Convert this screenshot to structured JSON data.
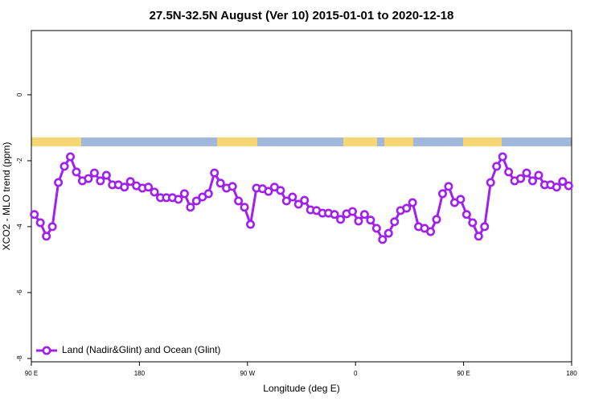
{
  "chart_data": {
    "type": "line",
    "title": "27.5N-32.5N August (Ver 10)   2015-01-01 to 2020-12-18",
    "x_label": "Longitude (deg E)",
    "y_label": "XCO2 - MLO trend (ppm)",
    "xlim": [
      90,
      540
    ],
    "ylim": [
      -8.1,
      1.95
    ],
    "xticks": [
      {
        "value": 90,
        "label": "90 E"
      },
      {
        "value": 180,
        "label": "180"
      },
      {
        "value": 270,
        "label": "90 W"
      },
      {
        "value": 360,
        "label": "0"
      },
      {
        "value": 450,
        "label": "90 E"
      },
      {
        "value": 540,
        "label": "180"
      }
    ],
    "yticks": [
      0,
      -2,
      -4,
      -6,
      -8
    ],
    "legend": "bottom-left",
    "x": [
      92.5,
      97.5,
      102.5,
      107.5,
      112.5,
      117.5,
      122.5,
      127.5,
      132.5,
      137.5,
      142.5,
      147.5,
      152.5,
      157.5,
      162.5,
      167.5,
      172.5,
      177.5,
      182.5,
      187.5,
      192.5,
      197.5,
      202.5,
      207.5,
      212.5,
      217.5,
      222.5,
      227.5,
      232.5,
      237.5,
      242.5,
      247.5,
      252.5,
      257.5,
      262.5,
      267.5,
      272.5,
      277.5,
      282.5,
      287.5,
      292.5,
      297.5,
      302.5,
      307.5,
      312.5,
      317.5,
      322.5,
      327.5,
      332.5,
      337.5,
      342.5,
      347.5,
      352.5,
      357.5,
      362.5,
      367.5,
      372.5,
      377.5,
      382.5,
      387.5,
      392.5,
      397.5,
      402.5,
      407.5,
      412.5,
      417.5,
      422.5,
      427.5,
      432.5,
      437.5,
      442.5,
      447.5,
      452.5,
      457.5,
      462.5,
      467.5,
      472.5,
      477.5,
      482.5,
      487.5,
      492.5,
      497.5,
      502.5,
      507.5,
      512.5,
      517.5,
      522.5,
      527.5,
      532.5,
      537.5
    ],
    "series": [
      {
        "name": "Land (Nadir&Glint) and Ocean (Glint)",
        "color": "#a020f0",
        "values": [
          -3.63,
          -3.88,
          -4.29,
          -4.0,
          -2.66,
          -2.17,
          -1.88,
          -2.34,
          -2.61,
          -2.54,
          -2.37,
          -2.61,
          -2.44,
          -2.73,
          -2.73,
          -2.8,
          -2.63,
          -2.76,
          -2.83,
          -2.8,
          -2.95,
          -3.12,
          -3.12,
          -3.12,
          -3.17,
          -3.0,
          -3.41,
          -3.22,
          -3.1,
          -3.0,
          -2.37,
          -2.68,
          -2.83,
          -2.78,
          -3.22,
          -3.41,
          -3.93,
          -2.83,
          -2.85,
          -2.93,
          -2.8,
          -2.9,
          -3.22,
          -3.1,
          -3.32,
          -3.2,
          -3.49,
          -3.51,
          -3.59,
          -3.59,
          -3.63,
          -3.78,
          -3.61,
          -3.54,
          -3.83,
          -3.63,
          -3.8,
          -4.05,
          -4.39,
          -4.2,
          -3.85,
          -3.51,
          -3.44,
          -3.27,
          -4.0,
          -4.05,
          -4.15,
          -3.78,
          -3.0,
          -2.78,
          -3.27,
          -3.17,
          -3.63,
          -3.88,
          -4.29,
          -4.0,
          -2.66,
          -2.17,
          -1.88,
          -2.34,
          -2.61,
          -2.54,
          -2.37,
          -2.61,
          -2.44,
          -2.73,
          -2.73,
          -2.8,
          -2.63,
          -2.76
        ]
      }
    ]
  }
}
